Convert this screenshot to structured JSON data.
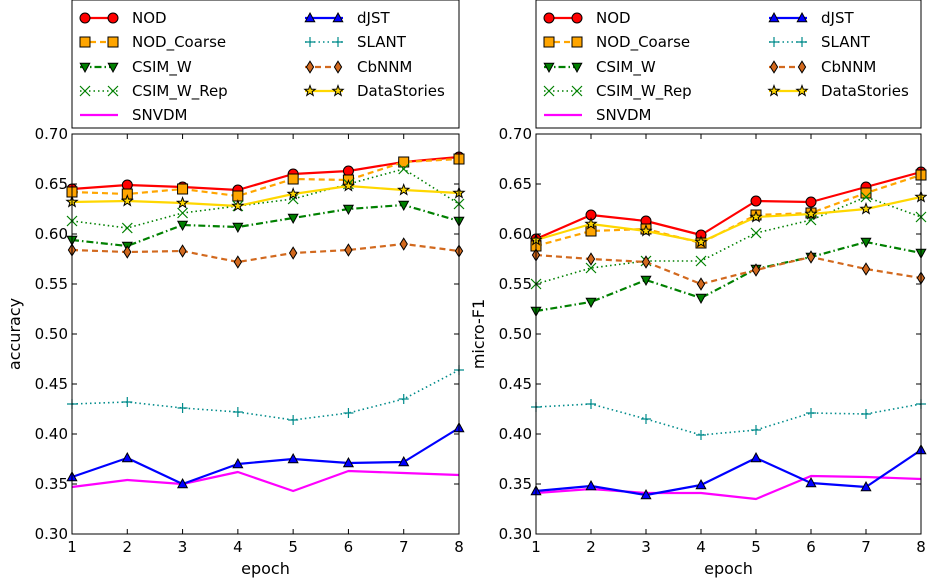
{
  "chart_data": [
    {
      "type": "line",
      "xlabel": "epoch",
      "ylabel": "accuracy",
      "xlim": [
        1,
        8
      ],
      "ylim": [
        0.3,
        0.7
      ],
      "xticks": [
        "1",
        "2",
        "3",
        "4",
        "5",
        "6",
        "7",
        "8"
      ],
      "yticks": [
        "0.30",
        "0.35",
        "0.40",
        "0.45",
        "0.50",
        "0.55",
        "0.60",
        "0.65",
        "0.70"
      ],
      "legend_position": "top",
      "x": [
        1,
        2,
        3,
        4,
        5,
        6,
        7,
        8
      ],
      "series": [
        {
          "name": "NOD",
          "color": "#ff0000",
          "marker": "circle",
          "dash": "solid",
          "values": [
            0.645,
            0.649,
            0.647,
            0.644,
            0.66,
            0.663,
            0.672,
            0.677
          ]
        },
        {
          "name": "NOD_Coarse",
          "color": "#ffa500",
          "marker": "square",
          "dash": "dashed",
          "values": [
            0.642,
            0.64,
            0.645,
            0.638,
            0.655,
            0.654,
            0.672,
            0.675
          ]
        },
        {
          "name": "CSIM_W",
          "color": "#008000",
          "marker": "triangle-down",
          "dash": "dashdot",
          "values": [
            0.594,
            0.588,
            0.609,
            0.607,
            0.616,
            0.625,
            0.629,
            0.613
          ]
        },
        {
          "name": "CSIM_W_Rep",
          "color": "#008000",
          "marker": "x",
          "dash": "dotted",
          "values": [
            0.613,
            0.606,
            0.621,
            0.628,
            0.635,
            0.65,
            0.665,
            0.63
          ]
        },
        {
          "name": "SNVDM",
          "color": "#ff00ff",
          "marker": "none",
          "dash": "solid",
          "values": [
            0.347,
            0.354,
            0.35,
            0.362,
            0.343,
            0.363,
            0.361,
            0.359
          ]
        },
        {
          "name": "dJST",
          "color": "#0000ff",
          "marker": "triangle-up",
          "dash": "solid",
          "values": [
            0.357,
            0.376,
            0.35,
            0.37,
            0.375,
            0.371,
            0.372,
            0.406
          ]
        },
        {
          "name": "SLANT",
          "color": "#008b8b",
          "marker": "plus",
          "dash": "dotted",
          "values": [
            0.43,
            0.432,
            0.426,
            0.422,
            0.414,
            0.421,
            0.435,
            0.464
          ]
        },
        {
          "name": "CbNNM",
          "color": "#d2691e",
          "marker": "diamond",
          "dash": "dashed",
          "values": [
            0.584,
            0.582,
            0.583,
            0.572,
            0.581,
            0.584,
            0.59,
            0.583
          ]
        },
        {
          "name": "DataStories",
          "color": "#ffd700",
          "marker": "star",
          "dash": "solid",
          "values": [
            0.632,
            0.633,
            0.631,
            0.628,
            0.64,
            0.648,
            0.644,
            0.641
          ]
        }
      ]
    },
    {
      "type": "line",
      "xlabel": "epoch",
      "ylabel": "micro-F1",
      "xlim": [
        1,
        8
      ],
      "ylim": [
        0.3,
        0.7
      ],
      "xticks": [
        "1",
        "2",
        "3",
        "4",
        "5",
        "6",
        "7",
        "8"
      ],
      "yticks": [
        "0.30",
        "0.35",
        "0.40",
        "0.45",
        "0.50",
        "0.55",
        "0.60",
        "0.65",
        "0.70"
      ],
      "legend_position": "top",
      "x": [
        1,
        2,
        3,
        4,
        5,
        6,
        7,
        8
      ],
      "series": [
        {
          "name": "NOD",
          "color": "#ff0000",
          "marker": "circle",
          "dash": "solid",
          "values": [
            0.595,
            0.619,
            0.613,
            0.599,
            0.633,
            0.632,
            0.647,
            0.662
          ]
        },
        {
          "name": "NOD_Coarse",
          "color": "#ffa500",
          "marker": "square",
          "dash": "dashed",
          "values": [
            0.588,
            0.603,
            0.605,
            0.591,
            0.619,
            0.621,
            0.641,
            0.659
          ]
        },
        {
          "name": "CSIM_W",
          "color": "#008000",
          "marker": "triangle-down",
          "dash": "dashdot",
          "values": [
            0.523,
            0.532,
            0.554,
            0.536,
            0.565,
            0.577,
            0.592,
            0.581
          ]
        },
        {
          "name": "CSIM_W_Rep",
          "color": "#008000",
          "marker": "x",
          "dash": "dotted",
          "values": [
            0.55,
            0.566,
            0.573,
            0.573,
            0.601,
            0.614,
            0.637,
            0.617
          ]
        },
        {
          "name": "SNVDM",
          "color": "#ff00ff",
          "marker": "none",
          "dash": "solid",
          "values": [
            0.341,
            0.345,
            0.341,
            0.341,
            0.335,
            0.358,
            0.357,
            0.355
          ]
        },
        {
          "name": "dJST",
          "color": "#0000ff",
          "marker": "triangle-up",
          "dash": "solid",
          "values": [
            0.343,
            0.348,
            0.339,
            0.349,
            0.376,
            0.351,
            0.347,
            0.384
          ]
        },
        {
          "name": "SLANT",
          "color": "#008b8b",
          "marker": "plus",
          "dash": "dotted",
          "values": [
            0.427,
            0.43,
            0.415,
            0.399,
            0.404,
            0.421,
            0.42,
            0.43
          ]
        },
        {
          "name": "CbNNM",
          "color": "#d2691e",
          "marker": "diamond",
          "dash": "dashed",
          "values": [
            0.579,
            0.575,
            0.572,
            0.55,
            0.564,
            0.577,
            0.565,
            0.556
          ]
        },
        {
          "name": "DataStories",
          "color": "#ffd700",
          "marker": "star",
          "dash": "solid",
          "values": [
            0.594,
            0.61,
            0.603,
            0.592,
            0.617,
            0.62,
            0.625,
            0.637
          ]
        }
      ]
    }
  ]
}
